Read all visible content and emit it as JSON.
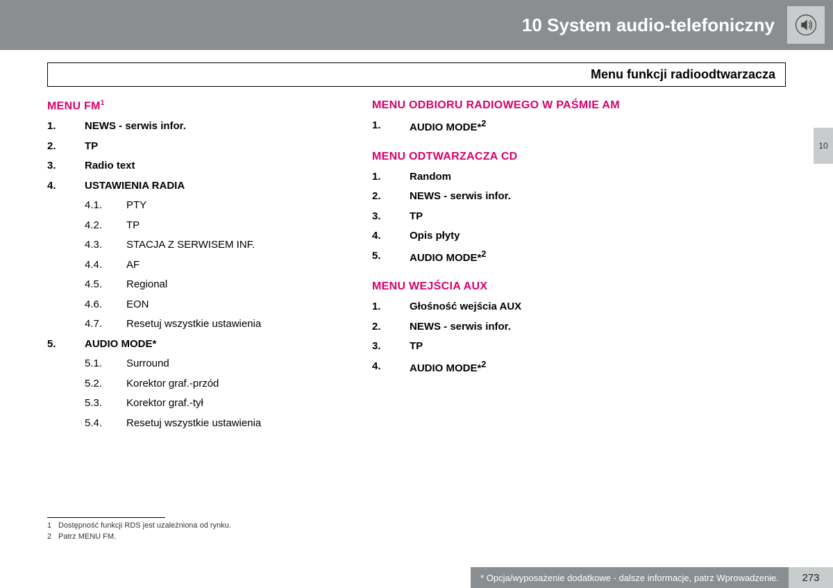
{
  "header": {
    "title": "10 System audio-telefoniczny"
  },
  "subheader": "Menu funkcji radioodtwarzacza",
  "right_tab": "10",
  "page_number": "273",
  "footer_note": "* Opcja/wyposażenie dodatkowe - dalsze informacje, patrz Wprowadzenie.",
  "colors": {
    "heading": "#d8006b",
    "header_bg": "#8a8e91",
    "tab_bg": "#c9cccd"
  },
  "col1": {
    "sections": [
      {
        "heading": "MENU FM",
        "heading_sup": "1",
        "items": [
          {
            "num": "1.",
            "label": "NEWS - serwis infor.",
            "sup": ""
          },
          {
            "num": "2.",
            "label": "TP",
            "sup": ""
          },
          {
            "num": "3.",
            "label": "Radio text",
            "sup": ""
          },
          {
            "num": "4.",
            "label": "USTAWIENIA RADIA",
            "sup": "",
            "sub": [
              {
                "num": "4.1.",
                "label": "PTY"
              },
              {
                "num": "4.2.",
                "label": "TP"
              },
              {
                "num": "4.3.",
                "label": "STACJA Z SERWISEM INF."
              },
              {
                "num": "4.4.",
                "label": "AF"
              },
              {
                "num": "4.5.",
                "label": "Regional"
              },
              {
                "num": "4.6.",
                "label": "EON"
              },
              {
                "num": "4.7.",
                "label": "Resetuj wszystkie ustawienia"
              }
            ]
          },
          {
            "num": "5.",
            "label": "AUDIO MODE*",
            "sup": "",
            "sub": [
              {
                "num": "5.1.",
                "label": "Surround"
              },
              {
                "num": "5.2.",
                "label": "Korektor graf.-przód"
              },
              {
                "num": "5.3.",
                "label": "Korektor graf.-tył"
              },
              {
                "num": "5.4.",
                "label": "Resetuj wszystkie ustawienia"
              }
            ]
          }
        ]
      }
    ]
  },
  "col2": {
    "sections": [
      {
        "heading": "MENU ODBIORU RADIOWEGO W PAŚMIE AM",
        "heading_sup": "",
        "items": [
          {
            "num": "1.",
            "label": "AUDIO MODE*",
            "sup": "2"
          }
        ]
      },
      {
        "heading": "MENU ODTWARZACZA CD",
        "heading_sup": "",
        "items": [
          {
            "num": "1.",
            "label": "Random",
            "sup": ""
          },
          {
            "num": "2.",
            "label": "NEWS - serwis infor.",
            "sup": ""
          },
          {
            "num": "3.",
            "label": "TP",
            "sup": ""
          },
          {
            "num": "4.",
            "label": "Opis płyty",
            "sup": ""
          },
          {
            "num": "5.",
            "label": "AUDIO MODE*",
            "sup": "2"
          }
        ]
      },
      {
        "heading": "MENU WEJŚCIA AUX",
        "heading_sup": "",
        "items": [
          {
            "num": "1.",
            "label": "Głośność wejścia AUX",
            "sup": ""
          },
          {
            "num": "2.",
            "label": "NEWS - serwis infor.",
            "sup": ""
          },
          {
            "num": "3.",
            "label": "TP",
            "sup": ""
          },
          {
            "num": "4.",
            "label": "AUDIO MODE*",
            "sup": "2"
          }
        ]
      }
    ]
  },
  "footnotes": [
    {
      "num": "1",
      "text": "Dostępność funkcji RDS jest uzależniona od rynku."
    },
    {
      "num": "2",
      "text": "Patrz MENU FM."
    }
  ]
}
